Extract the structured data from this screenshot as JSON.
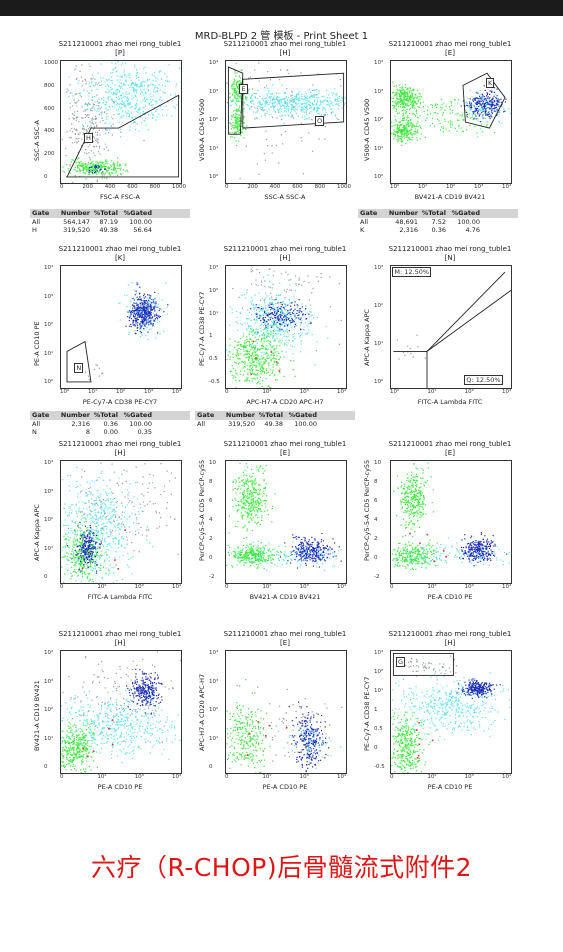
{
  "title": "MRD-BLPD 2 管 模板 - Print Sheet 1",
  "caption": "六疗（R-CHOP)后骨髓流式附件2",
  "colors": {
    "green": "#3ee83e",
    "cyan": "#5fe1ee",
    "blue": "#1a2db8",
    "gray": "#999999",
    "red": "#d83030",
    "caption": "#e01515"
  },
  "panels": [
    {
      "sample": "S211210001 zhao mei rong_tuble1",
      "gate": "[P]",
      "xlabel": "FSC-A FSC-A",
      "ylabel": "SSC-A SSC-A",
      "xticks": [
        "0",
        "200",
        "400",
        "600",
        "800",
        "1000"
      ],
      "yticks": [
        "1000",
        "800",
        "600",
        "400",
        "200",
        "0"
      ],
      "regions": [
        "H"
      ]
    },
    {
      "sample": "S211210001 zhao mei rong_tuble1",
      "gate": "[H]",
      "xlabel": "SSC-A SSC-A",
      "ylabel": "V500-A CD45 V500",
      "xticks": [
        "0",
        "200",
        "400",
        "600",
        "800",
        "1000"
      ],
      "yticks": [
        "10⁴",
        "10³",
        "10²",
        "10¹",
        "10⁰"
      ],
      "regions": [
        "E",
        "O"
      ]
    },
    {
      "sample": "S211210001 zhao mei rong_tuble1",
      "gate": "[E]",
      "xlabel": "BV421-A CD19 BV421",
      "ylabel": "V500-A CD45 V500",
      "xticks": [
        "10⁰",
        "10¹",
        "10²",
        "10³",
        "10⁴"
      ],
      "yticks": [
        "10⁴",
        "10³",
        "10²",
        "10¹",
        "10⁰"
      ],
      "regions": [
        "K"
      ]
    },
    {
      "sample": "S211210001 zhao mei rong_tuble1",
      "gate": "[K]",
      "xlabel": "PE-Cy7-A CD38 PE-CY7",
      "ylabel": "PE-A CD10 PE",
      "xticks": [
        "10⁰",
        "10¹",
        "10²",
        "10³",
        "10⁴"
      ],
      "yticks": [
        "10⁴",
        "10³",
        "10²",
        "10¹",
        "10⁰"
      ],
      "regions": [
        "N"
      ]
    },
    {
      "sample": "S211210001 zhao mei rong_tuble1",
      "gate": "[H]",
      "xlabel": "APC-H7-A CD20 APC-H7",
      "ylabel": "PE-Cy7-A CD38 PE-CY7",
      "xticks": [
        "0",
        "10²",
        "10³",
        "10⁴"
      ],
      "yticks": [
        "10³",
        "10²",
        "10¹",
        "1",
        "0.5",
        "-0.5"
      ],
      "regions": []
    },
    {
      "sample": "S211210001 zhao mei rong_tuble1",
      "gate": "[N]",
      "xlabel": "FITC-A Lambda FITC",
      "ylabel": "APC-A Kappa APC",
      "xticks": [
        "10⁰",
        "10¹",
        "10²",
        "10³"
      ],
      "yticks": [
        "10³",
        "10²",
        "10¹",
        "10⁰"
      ],
      "regions": [
        "M: 12.50%",
        "Q: 12.50%"
      ]
    },
    {
      "sample": "S211210001 zhao mei rong_tuble1",
      "gate": "[H]",
      "xlabel": "FITC-A Lambda FITC",
      "ylabel": "APC-A Kappa APC",
      "xticks": [
        "0",
        "10²",
        "10³",
        "10⁴"
      ],
      "yticks": [
        "10⁴",
        "10³",
        "10²",
        "10¹",
        "0"
      ],
      "regions": []
    },
    {
      "sample": "S211210001 zhao mei rong_tuble1",
      "gate": "[E]",
      "xlabel": "BV421-A CD19 BV421",
      "ylabel": "PerCP-Cy5-5-A CD5 PerCP-cy55",
      "xticks": [
        "0",
        "10²",
        "10³",
        "10⁴"
      ],
      "yticks": [
        "10",
        "8",
        "6",
        "4",
        "2",
        "0",
        "-2"
      ],
      "regions": []
    },
    {
      "sample": "S211210001 zhao mei rong_tuble1",
      "gate": "[E]",
      "xlabel": "PE-A CD10 PE",
      "ylabel": "PerCP-Cy5-5-A CD5 PerCP-cy55",
      "xticks": [
        "0",
        "10²",
        "10³",
        "10⁴"
      ],
      "yticks": [
        "10",
        "8",
        "6",
        "4",
        "2",
        "0",
        "-2"
      ],
      "regions": []
    },
    {
      "sample": "S211210001 zhao mei rong_tuble1",
      "gate": "[H]",
      "xlabel": "PE-A CD10 PE",
      "ylabel": "BV421-A CD19 BV421",
      "xticks": [
        "0",
        "10²",
        "10³",
        "10⁴"
      ],
      "yticks": [
        "10⁴",
        "10³",
        "10²",
        "10¹",
        "0"
      ],
      "regions": []
    },
    {
      "sample": "S211210001 zhao mei rong_tuble1",
      "gate": "[E]",
      "xlabel": "PE-A CD10 PE",
      "ylabel": "APC-H7-A CD20 APC-H7",
      "xticks": [
        "0",
        "10²",
        "10³",
        "10⁴"
      ],
      "yticks": [
        "10⁴",
        "10³",
        "10²",
        "10¹",
        "0"
      ],
      "regions": []
    },
    {
      "sample": "S211210001 zhao mei rong_tuble1",
      "gate": "[H]",
      "xlabel": "PE-A CD10 PE",
      "ylabel": "PE-Cy7-A CD38 PE-CY7",
      "xticks": [
        "0",
        "10²",
        "10³",
        "10⁴"
      ],
      "yticks": [
        "10³",
        "10²",
        "10¹",
        "1",
        "0.5",
        "0",
        "-0.5"
      ],
      "regions": [
        "G"
      ]
    }
  ],
  "gate_tables": [
    {
      "header": [
        "Gate",
        "Number",
        "%Total",
        "%Gated"
      ],
      "rows": [
        [
          "All",
          "564,147",
          "87.19",
          "100.00"
        ],
        [
          "H",
          "319,520",
          "49.38",
          "56.64"
        ]
      ]
    },
    {
      "header": [
        "Gate",
        "Number",
        "%Total",
        "%Gated"
      ],
      "rows": [
        [
          "All",
          "48,691",
          "7.52",
          "100.00"
        ],
        [
          "K",
          "2,316",
          "0.36",
          "4.76"
        ]
      ]
    },
    {
      "header": [
        "Gate",
        "Number",
        "%Total",
        "%Gated"
      ],
      "rows": [
        [
          "All",
          "2,316",
          "0.36",
          "100.00"
        ],
        [
          "N",
          "8",
          "0.00",
          "0.35"
        ]
      ]
    },
    {
      "header": [
        "Gate",
        "Number",
        "%Total",
        "%Gated"
      ],
      "rows": [
        [
          "All",
          "319,520",
          "49.38",
          "100.00"
        ]
      ]
    }
  ],
  "chart_data": {
    "type": "scatter",
    "title": "MRD-BLPD 2 管 模板 - Print Sheet 1",
    "plots": [
      {
        "x": "FSC-A FSC-A",
        "y": "SSC-A SSC-A",
        "gates": [
          "H"
        ]
      },
      {
        "x": "SSC-A SSC-A",
        "y": "V500-A CD45 V500",
        "gates": [
          "E",
          "O"
        ]
      },
      {
        "x": "BV421-A CD19 BV421",
        "y": "V500-A CD45 V500",
        "gates": [
          "K"
        ]
      },
      {
        "x": "PE-Cy7-A CD38 PE-CY7",
        "y": "PE-A CD10 PE",
        "gates": [
          "N"
        ]
      },
      {
        "x": "APC-H7-A CD20 APC-H7",
        "y": "PE-Cy7-A CD38 PE-CY7",
        "gates": []
      },
      {
        "x": "FITC-A Lambda FITC",
        "y": "APC-A Kappa APC",
        "gates": [
          "M",
          "Q"
        ],
        "percent": {
          "M": 12.5,
          "Q": 12.5
        }
      },
      {
        "x": "FITC-A Lambda FITC",
        "y": "APC-A Kappa APC",
        "gates": []
      },
      {
        "x": "BV421-A CD19 BV421",
        "y": "PerCP-Cy5-5-A CD5 PerCP-cy55",
        "gates": []
      },
      {
        "x": "PE-A CD10 PE",
        "y": "PerCP-Cy5-5-A CD5 PerCP-cy55",
        "gates": []
      },
      {
        "x": "PE-A CD10 PE",
        "y": "BV421-A CD19 BV421",
        "gates": []
      },
      {
        "x": "PE-A CD10 PE",
        "y": "APC-H7-A CD20 APC-H7",
        "gates": []
      },
      {
        "x": "PE-A CD10 PE",
        "y": "PE-Cy7-A CD38 PE-CY7",
        "gates": [
          "G"
        ]
      }
    ]
  }
}
